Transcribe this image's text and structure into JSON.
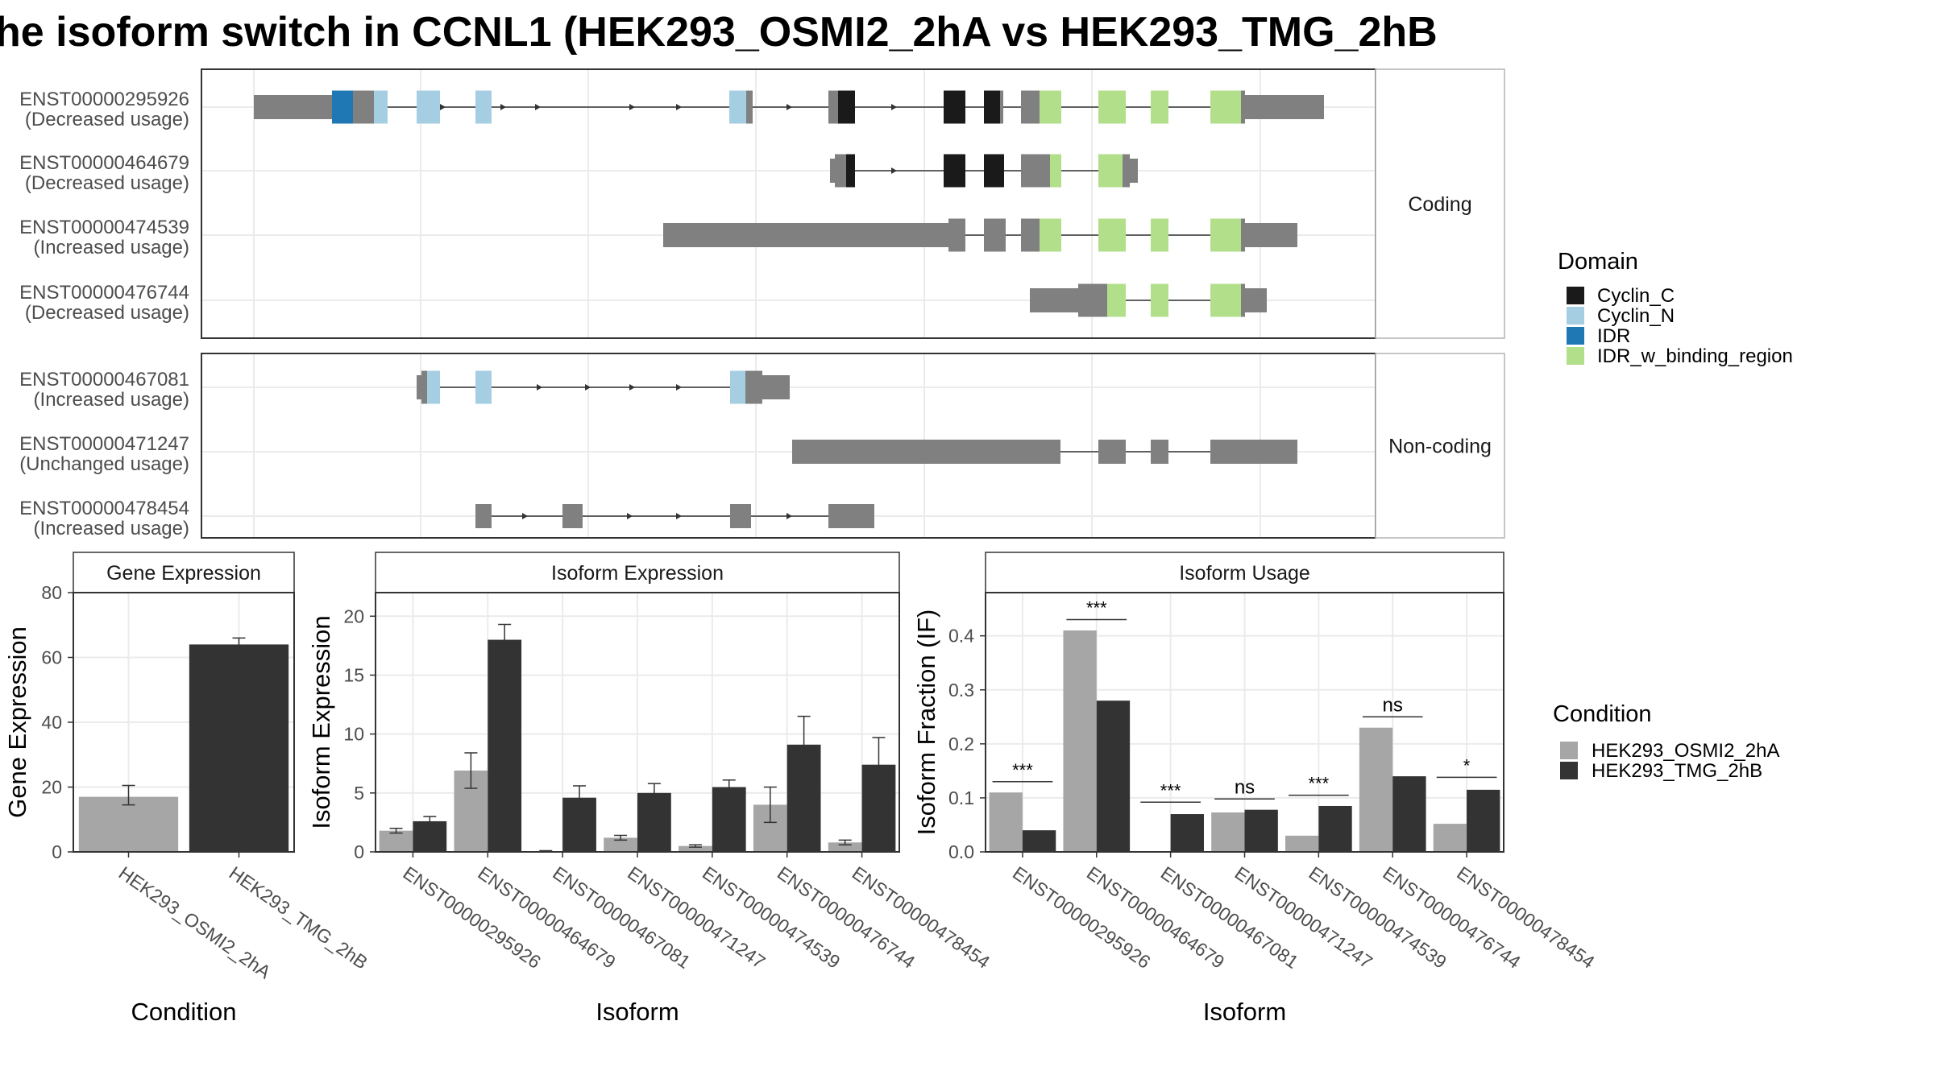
{
  "title": "he isoform switch in CCNL1 (HEK293_OSMI2_2hA vs HEK293_TMG_2hB",
  "colors": {
    "utr": "#808080",
    "cyclin_c": "#1a1a1a",
    "cyclin_n": "#a6cee3",
    "idr": "#1f78b4",
    "idr_binding": "#b2df8a",
    "cond_a": "#a6a6a6",
    "cond_b": "#333333"
  },
  "structure": {
    "groups": [
      {
        "label": "Coding",
        "isoforms": [
          {
            "id": "ENST00000295926",
            "usage": "(Decreased usage)"
          },
          {
            "id": "ENST00000464679",
            "usage": "(Decreased usage)"
          },
          {
            "id": "ENST00000474539",
            "usage": "(Increased usage)"
          },
          {
            "id": "ENST00000476744",
            "usage": "(Decreased usage)"
          }
        ]
      },
      {
        "label": "Non-coding",
        "isoforms": [
          {
            "id": "ENST00000467081",
            "usage": "(Increased usage)"
          },
          {
            "id": "ENST00000471247",
            "usage": "(Unchanged usage)"
          },
          {
            "id": "ENST00000478454",
            "usage": "(Increased usage)"
          }
        ]
      }
    ],
    "domain_legend": {
      "title": "Domain",
      "items": [
        {
          "label": "Cyclin_C",
          "color": "#1a1a1a"
        },
        {
          "label": "Cyclin_N",
          "color": "#a6cee3"
        },
        {
          "label": "IDR",
          "color": "#1f78b4"
        },
        {
          "label": "IDR_w_binding_region",
          "color": "#b2df8a"
        }
      ]
    }
  },
  "chart_data": [
    {
      "type": "bar",
      "title": "Gene Expression",
      "xlabel": "Condition",
      "ylabel": "Gene Expression",
      "ylim": [
        0,
        80
      ],
      "yticks": [
        0,
        20,
        40,
        60,
        80
      ],
      "categories": [
        "HEK293_OSMI2_2hA",
        "HEK293_TMG_2hB"
      ],
      "values": [
        17.0,
        64.0
      ],
      "errors": [
        [
          14.5,
          20.5
        ],
        [
          62.5,
          66.0
        ]
      ]
    },
    {
      "type": "bar",
      "title": "Isoform Expression",
      "xlabel": "Isoform",
      "ylabel": "Isoform Expression",
      "ylim": [
        0,
        22
      ],
      "yticks": [
        0,
        5,
        10,
        15,
        20
      ],
      "categories": [
        "ENST00000295926",
        "ENST00000464679",
        "ENST00000467081",
        "ENST00000471247",
        "ENST00000474539",
        "ENST00000476744",
        "ENST00000478454"
      ],
      "series": [
        {
          "name": "HEK293_OSMI2_2hA",
          "values": [
            1.8,
            6.9,
            0.05,
            1.2,
            0.5,
            4.0,
            0.8
          ],
          "errors": [
            [
              1.6,
              2.0
            ],
            [
              5.4,
              8.4
            ],
            [
              0.0,
              0.1
            ],
            [
              1.0,
              1.4
            ],
            [
              0.4,
              0.6
            ],
            [
              2.5,
              5.5
            ],
            [
              0.6,
              1.0
            ]
          ]
        },
        {
          "name": "HEK293_TMG_2hB",
          "values": [
            2.6,
            18.0,
            4.6,
            5.0,
            5.5,
            9.1,
            7.4
          ],
          "errors": [
            [
              2.2,
              3.0
            ],
            [
              16.8,
              19.3
            ],
            [
              3.6,
              5.6
            ],
            [
              4.2,
              5.8
            ],
            [
              4.9,
              6.1
            ],
            [
              6.8,
              11.5
            ],
            [
              5.1,
              9.7
            ]
          ]
        }
      ]
    },
    {
      "type": "bar",
      "title": "Isoform Usage",
      "xlabel": "Isoform",
      "ylabel": "Isoform Fraction (IF)",
      "ylim": [
        0,
        0.48
      ],
      "yticks": [
        "0.0",
        "0.1",
        "0.2",
        "0.3",
        "0.4"
      ],
      "categories": [
        "ENST00000295926",
        "ENST00000464679",
        "ENST00000467081",
        "ENST00000471247",
        "ENST00000474539",
        "ENST00000476744",
        "ENST00000478454"
      ],
      "series": [
        {
          "name": "HEK293_OSMI2_2hA",
          "values": [
            0.11,
            0.41,
            0.0,
            0.073,
            0.03,
            0.23,
            0.052
          ]
        },
        {
          "name": "HEK293_TMG_2hB",
          "values": [
            0.04,
            0.28,
            0.07,
            0.078,
            0.085,
            0.14,
            0.115
          ]
        }
      ],
      "significance": [
        "***",
        "***",
        "***",
        "ns",
        "***",
        "ns",
        "*"
      ],
      "significance_y": [
        0.13,
        0.43,
        0.092,
        0.098,
        0.105,
        0.25,
        0.138
      ]
    }
  ],
  "condition_legend": {
    "title": "Condition",
    "items": [
      {
        "label": "HEK293_OSMI2_2hA",
        "color": "#a6a6a6"
      },
      {
        "label": "HEK293_TMG_2hB",
        "color": "#333333"
      }
    ]
  }
}
